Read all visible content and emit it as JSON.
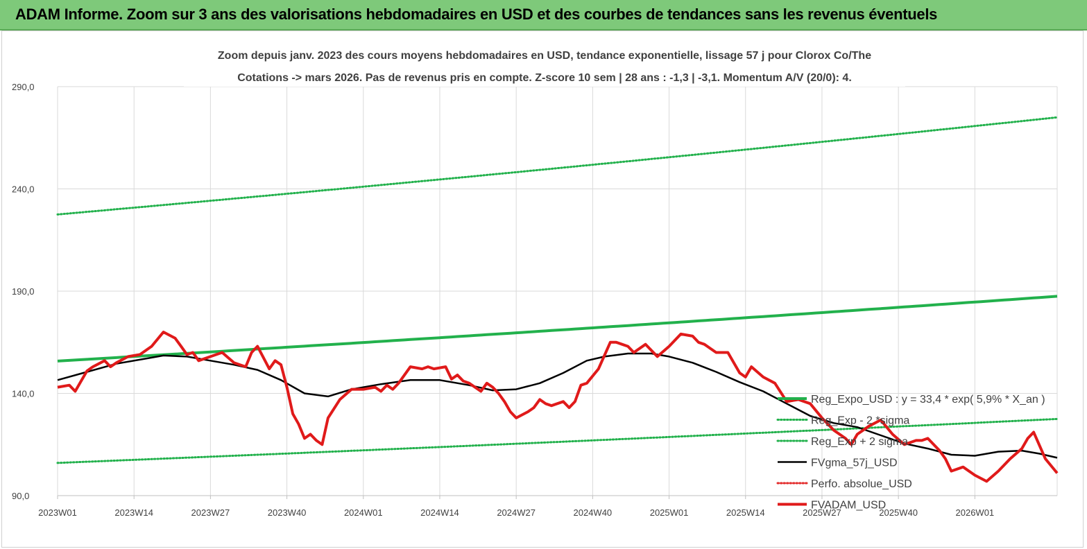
{
  "banner": {
    "title": "ADAM Informe. Zoom sur 3 ans des valorisations hebdomadaires en USD et des courbes de tendances sans les revenus éventuels"
  },
  "chart_data": {
    "type": "line",
    "title_line1": "Zoom depuis janv. 2023 des cours moyens hebdomadaires en USD, tendance exponentielle, lissage 57 j pour Clorox Co/The",
    "title_line2": "Cotations -> mars 2026. Pas de revenus pris en  compte. Z-score 10 sem  | 28 ans : -1,3  | -3,1. Momentum A/V (20/0): 4.",
    "ylim": [
      90,
      290
    ],
    "yticks": [
      "90,0",
      "140,0",
      "190,0",
      "240,0",
      "290,0"
    ],
    "ytick_values": [
      90,
      140,
      190,
      240,
      290
    ],
    "xlim": [
      0,
      170
    ],
    "xticks": [
      "2023W01",
      "2023W14",
      "2023W27",
      "2023W40",
      "2024W01",
      "2024W14",
      "2024W27",
      "2024W40",
      "2025W01",
      "2025W14",
      "2025W27",
      "2025W40",
      "2026W01"
    ],
    "xtick_values": [
      0,
      13,
      26,
      39,
      52,
      65,
      78,
      91,
      104,
      117,
      130,
      143,
      156
    ],
    "grid": "horizontal-and-vertical",
    "legend_position": "right",
    "series": [
      {
        "name": "Reg_Expo_USD : y = 33,4 * exp( 5,9% *  X_an )",
        "color": "#22b14c",
        "style": "solid-thick",
        "x": [
          0,
          170
        ],
        "values": [
          155.8,
          187.5
        ],
        "curve": "exponential"
      },
      {
        "name": "Reg_Exp - 2 *sigma",
        "color": "#22b14c",
        "style": "dotted",
        "x": [
          0,
          170
        ],
        "values": [
          106.0,
          127.5
        ],
        "curve": "exponential"
      },
      {
        "name": "Reg_Exp + 2 sigma",
        "color": "#22b14c",
        "style": "dotted",
        "x": [
          0,
          170
        ],
        "values": [
          227.5,
          275.0
        ],
        "curve": "exponential"
      },
      {
        "name": "FVgma_57j_USD",
        "color": "#000000",
        "style": "solid",
        "x": [
          0,
          5,
          10,
          15,
          18,
          22,
          26,
          30,
          34,
          38,
          42,
          46,
          50,
          55,
          60,
          65,
          70,
          74,
          78,
          82,
          86,
          90,
          93,
          97,
          101,
          104,
          108,
          112,
          116,
          120,
          124,
          128,
          132,
          136,
          140,
          144,
          148,
          152,
          156,
          160,
          164,
          167,
          170
        ],
        "values": [
          146.5,
          150.5,
          154.5,
          157.0,
          158.5,
          158.0,
          156.0,
          154.0,
          151.5,
          146.5,
          140.0,
          138.5,
          142.0,
          144.5,
          146.5,
          146.5,
          144.0,
          141.5,
          142.0,
          145.0,
          150.0,
          156.0,
          158.0,
          159.5,
          159.5,
          158.0,
          155.0,
          150.5,
          145.5,
          141.0,
          135.0,
          129.0,
          125.5,
          123.5,
          119.5,
          115.5,
          113.0,
          110.0,
          109.5,
          111.5,
          112.0,
          110.5,
          108.5
        ]
      },
      {
        "name": "Perfo. absolue_USD",
        "color": "#e32b2b",
        "style": "dotted",
        "x": [],
        "values": []
      },
      {
        "name": "FVADAM_USD",
        "color": "#e01a1a",
        "style": "solid-thick",
        "x": [
          0,
          2,
          3,
          4,
          5,
          6,
          8,
          9,
          10,
          12,
          14,
          16,
          18,
          20,
          21,
          22,
          23,
          24,
          26,
          28,
          30,
          32,
          33,
          34,
          36,
          37,
          38,
          39,
          40,
          41,
          42,
          43,
          44,
          45,
          46,
          48,
          50,
          52,
          54,
          55,
          56,
          57,
          58,
          60,
          62,
          63,
          64,
          66,
          67,
          68,
          69,
          70,
          72,
          73,
          74,
          75,
          76,
          77,
          78,
          80,
          81,
          82,
          83,
          84,
          86,
          87,
          88,
          89,
          90,
          92,
          94,
          95,
          96,
          97,
          98,
          100,
          102,
          104,
          106,
          108,
          109,
          110,
          111,
          112,
          114,
          116,
          117,
          118,
          120,
          122,
          124,
          126,
          128,
          130,
          131,
          132,
          134,
          135,
          136,
          138,
          140,
          142,
          144,
          146,
          147,
          148,
          150,
          151,
          152,
          154,
          156,
          158,
          160,
          162,
          164,
          165,
          166,
          168,
          170
        ],
        "values": [
          143,
          144,
          141,
          146,
          151,
          153,
          156,
          153,
          155,
          158,
          159,
          163,
          170,
          167,
          163,
          159,
          160,
          156,
          158,
          160,
          155,
          153,
          160,
          163,
          152,
          156,
          154,
          143,
          130,
          125,
          118,
          120,
          117,
          115,
          128,
          137,
          142,
          142,
          143,
          141,
          144,
          142,
          145,
          153,
          152,
          153,
          152,
          153,
          147,
          149,
          146,
          145,
          141,
          145,
          143,
          140,
          136,
          131,
          128,
          131,
          133,
          137,
          135,
          134,
          136,
          133,
          136,
          144,
          145,
          152,
          165,
          165,
          164,
          163,
          160,
          164,
          158,
          163,
          169,
          168,
          165,
          164,
          162,
          160,
          160,
          150,
          148,
          153,
          148,
          145,
          136,
          137,
          135,
          128,
          125,
          122,
          118,
          115,
          120,
          124,
          127,
          120,
          115,
          117,
          117,
          118,
          112,
          108,
          102,
          104,
          100,
          97,
          102,
          108,
          113,
          118,
          121,
          108,
          101
        ]
      }
    ]
  }
}
